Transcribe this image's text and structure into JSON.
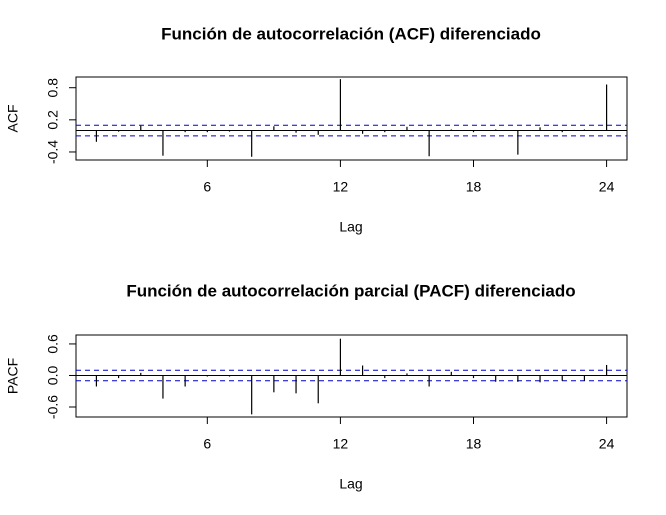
{
  "chart_data": [
    {
      "type": "bar",
      "title": "Función de autocorrelación (ACF) diferenciado",
      "x_label": "Lag",
      "y_label": "ACF",
      "x": [
        1,
        2,
        3,
        4,
        5,
        6,
        7,
        8,
        9,
        10,
        11,
        12,
        13,
        14,
        15,
        16,
        17,
        18,
        19,
        20,
        21,
        22,
        23,
        24
      ],
      "values": [
        -0.21,
        -0.02,
        0.09,
        -0.47,
        -0.03,
        -0.03,
        -0.02,
        -0.49,
        0.08,
        -0.04,
        -0.08,
        0.96,
        -0.06,
        -0.03,
        0.07,
        -0.48,
        0.02,
        -0.03,
        0.02,
        -0.45,
        0.06,
        -0.03,
        0.02,
        0.86
      ],
      "xlim": [
        0.08,
        24.92
      ],
      "xticks": [
        6,
        12,
        18,
        24
      ],
      "ylim": [
        -0.55,
        1.0
      ],
      "yticks": [
        -0.4,
        0.2,
        0.8
      ],
      "hlines": [
        0.1,
        -0.1
      ],
      "color": "#000000",
      "hline_color": "#0000cc"
    },
    {
      "type": "bar",
      "title": "Función de autocorrelación parcial (PACF) diferenciado",
      "x_label": "Lag",
      "y_label": "PACF",
      "x": [
        1,
        2,
        3,
        4,
        5,
        6,
        7,
        8,
        9,
        10,
        11,
        12,
        13,
        14,
        15,
        16,
        17,
        18,
        19,
        20,
        21,
        22,
        23,
        24
      ],
      "values": [
        -0.21,
        -0.05,
        0.05,
        -0.44,
        -0.21,
        -0.02,
        -0.02,
        -0.74,
        -0.32,
        -0.34,
        -0.53,
        0.7,
        0.19,
        -0.05,
        0.04,
        -0.21,
        0.07,
        -0.05,
        -0.12,
        -0.12,
        -0.13,
        -0.1,
        -0.1,
        0.2
      ],
      "xlim": [
        0.08,
        24.92
      ],
      "xticks": [
        6,
        12,
        18,
        24
      ],
      "ylim": [
        -0.79,
        0.77
      ],
      "yticks": [
        -0.6,
        {
          "value": 0,
          "label": "0.0"
        },
        0.6
      ],
      "hlines": [
        0.1,
        -0.1
      ],
      "color": "#000000",
      "hline_color": "#0000cc"
    }
  ]
}
